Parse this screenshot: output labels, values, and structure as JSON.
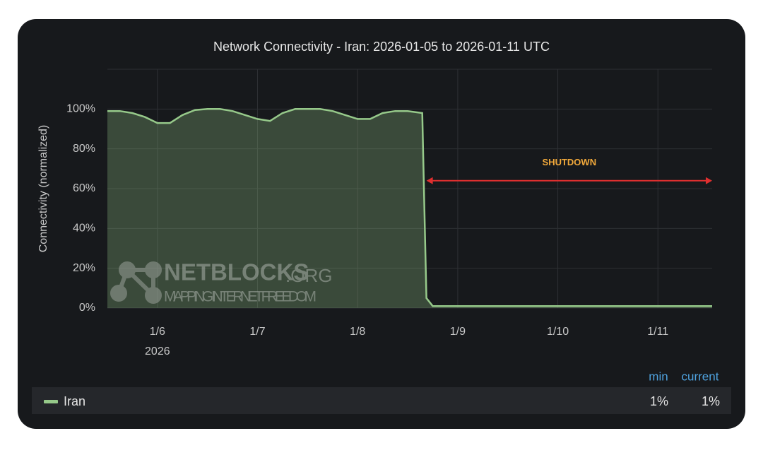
{
  "chart_data": {
    "type": "area",
    "title": "Network Connectivity - Iran: 2026-01-05 to 2026-01-11 UTC",
    "y_label": "Connectivity (normalized)",
    "x": [
      "2026-01-05T12:00",
      "2026-01-05T15:00",
      "2026-01-05T18:00",
      "2026-01-05T21:00",
      "2026-01-06T00:00",
      "2026-01-06T03:00",
      "2026-01-06T06:00",
      "2026-01-06T09:00",
      "2026-01-06T12:00",
      "2026-01-06T15:00",
      "2026-01-06T18:00",
      "2026-01-06T21:00",
      "2026-01-07T00:00",
      "2026-01-07T03:00",
      "2026-01-07T06:00",
      "2026-01-07T09:00",
      "2026-01-07T12:00",
      "2026-01-07T15:00",
      "2026-01-07T18:00",
      "2026-01-07T21:00",
      "2026-01-08T00:00",
      "2026-01-08T03:00",
      "2026-01-08T06:00",
      "2026-01-08T09:00",
      "2026-01-08T12:00",
      "2026-01-08T15:30",
      "2026-01-08T16:00",
      "2026-01-08T16:30",
      "2026-01-08T18:00",
      "2026-01-09T00:00",
      "2026-01-10T00:00",
      "2026-01-11T00:00",
      "2026-01-11T13:00"
    ],
    "series": [
      {
        "name": "Iran",
        "color": "#96c98a",
        "values": [
          99,
          99,
          98,
          96,
          93,
          93,
          97,
          99.5,
          100,
          100,
          99,
          97,
          95,
          94,
          98,
          100,
          100,
          100,
          99,
          97,
          95,
          95,
          98,
          99,
          99,
          98,
          50,
          5,
          1,
          1,
          1,
          1,
          1
        ]
      }
    ],
    "xlim": [
      "2026-01-05T12:00",
      "2026-01-11T13:00"
    ],
    "xticks": [
      {
        "value": "2026-01-06",
        "label": "1/6"
      },
      {
        "value": "2026-01-07",
        "label": "1/7"
      },
      {
        "value": "2026-01-08",
        "label": "1/8"
      },
      {
        "value": "2026-01-09",
        "label": "1/9"
      },
      {
        "value": "2026-01-10",
        "label": "1/10"
      },
      {
        "value": "2026-01-11",
        "label": "1/11"
      }
    ],
    "x_year_label": "2026",
    "ylim": [
      0,
      120
    ],
    "yticks": [
      {
        "value": 0,
        "label": "0%"
      },
      {
        "value": 20,
        "label": "20%"
      },
      {
        "value": 40,
        "label": "40%"
      },
      {
        "value": 60,
        "label": "60%"
      },
      {
        "value": 80,
        "label": "80%"
      },
      {
        "value": 100,
        "label": "100%"
      }
    ],
    "grid": true,
    "annotation": {
      "text": "SHUTDOWN",
      "y": 64,
      "x": [
        "2026-01-08T16:30",
        "2026-01-11T13:00"
      ],
      "color": "#e02f2f",
      "text_color": "#f2a93b"
    },
    "legend_stats": {
      "headers": [
        "min",
        "current"
      ],
      "values": [
        "1%",
        "1%"
      ]
    },
    "watermark": {
      "brand": "NETBLOCKS",
      "suffix": ".ORG",
      "tagline": "MAPPING INTERNET FREEDOM"
    }
  }
}
